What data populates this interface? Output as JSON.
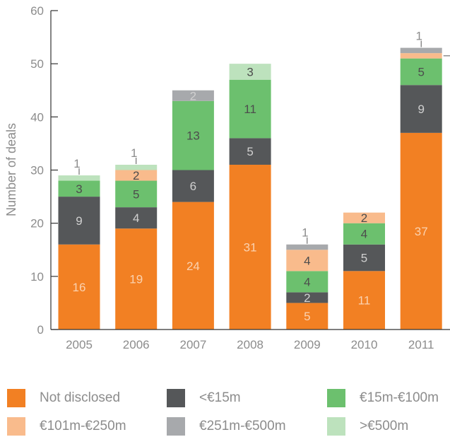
{
  "chart_data": {
    "type": "bar",
    "stacked": true,
    "ylabel": "Number of deals",
    "xlabel": "",
    "ylim": [
      0,
      60
    ],
    "yticks": [
      0,
      10,
      20,
      30,
      40,
      50,
      60
    ],
    "grid": false,
    "legend_position": "bottom",
    "categories": [
      "2005",
      "2006",
      "2007",
      "2008",
      "2009",
      "2010",
      "2011"
    ],
    "series": [
      {
        "name": "Not disclosed",
        "color": "#f28023",
        "values": [
          16,
          19,
          24,
          31,
          5,
          11,
          37
        ]
      },
      {
        "name": "<€15m",
        "color": "#555759",
        "values": [
          9,
          4,
          6,
          5,
          2,
          5,
          9
        ]
      },
      {
        "name": "€15m-€100m",
        "color": "#6cc06e",
        "values": [
          3,
          5,
          13,
          11,
          4,
          4,
          5
        ]
      },
      {
        "name": "€101m-€250m",
        "color": "#f9bb8c",
        "values": [
          0,
          2,
          0,
          0,
          4,
          2,
          1
        ]
      },
      {
        "name": "€251m-€500m",
        "color": "#a7a9ac",
        "values": [
          0,
          0,
          2,
          0,
          1,
          0,
          1
        ]
      },
      {
        "name": ">€500m",
        "color": "#bde2bd",
        "values": [
          1,
          1,
          0,
          3,
          0,
          0,
          0
        ]
      }
    ]
  }
}
